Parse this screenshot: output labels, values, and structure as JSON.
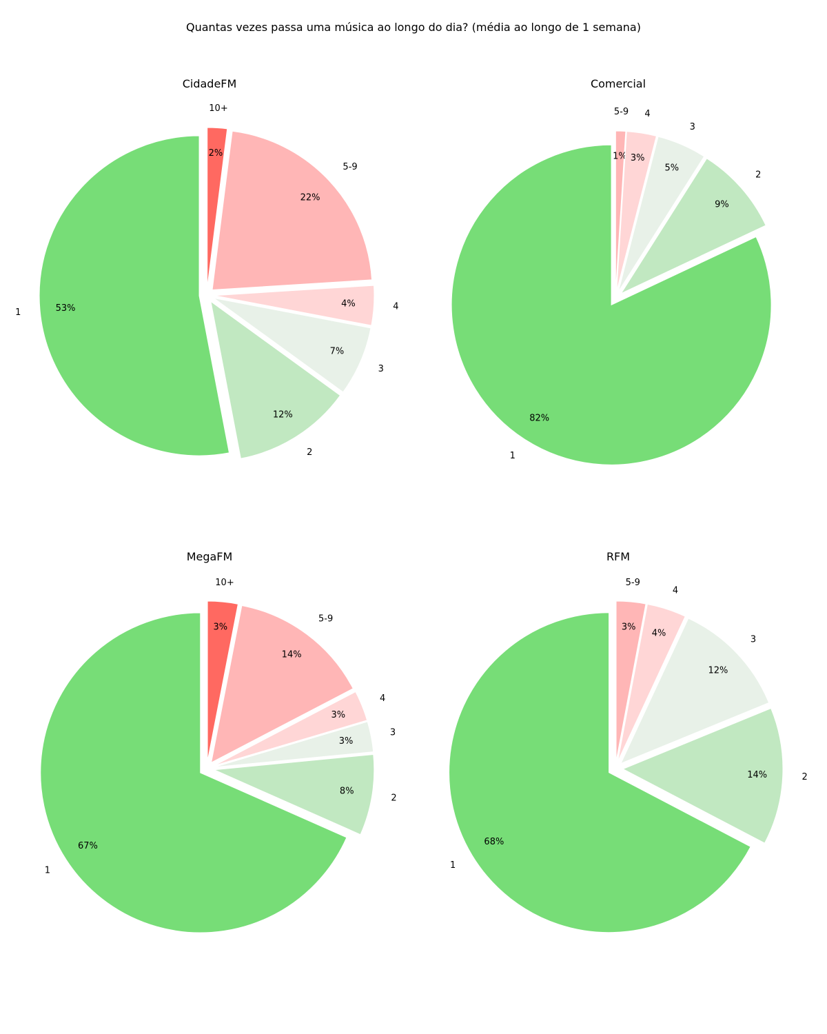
{
  "figure": {
    "suptitle": "Quantas vezes passa uma música ao longo do dia? (média ao longo de 1 semana)"
  },
  "colors": {
    "1": "#77dd77",
    "2": "#c1e8c1",
    "3": "#e8f1e8",
    "4": "#ffd6d6",
    "5-9": "#ffb6b6",
    "10+": "#ff6961"
  },
  "chart_data": [
    {
      "type": "pie",
      "title": "CidadeFM",
      "slices": [
        {
          "label": "10+",
          "value": 2,
          "pct_label": "2%",
          "color": "#ff6961"
        },
        {
          "label": "5-9",
          "value": 22,
          "pct_label": "22%",
          "color": "#ffb6b6"
        },
        {
          "label": "4",
          "value": 4,
          "pct_label": "4%",
          "color": "#ffd6d6"
        },
        {
          "label": "3",
          "value": 7,
          "pct_label": "7%",
          "color": "#e8f1e8"
        },
        {
          "label": "2",
          "value": 12,
          "pct_label": "12%",
          "color": "#c1e8c1"
        },
        {
          "label": "1",
          "value": 53,
          "pct_label": "53%",
          "color": "#77dd77"
        }
      ]
    },
    {
      "type": "pie",
      "title": "Comercial",
      "slices": [
        {
          "label": "5-9",
          "value": 1,
          "pct_label": "1%",
          "color": "#ffb6b6"
        },
        {
          "label": "4",
          "value": 3,
          "pct_label": "3%",
          "color": "#ffd6d6"
        },
        {
          "label": "3",
          "value": 5,
          "pct_label": "5%",
          "color": "#e8f1e8"
        },
        {
          "label": "2",
          "value": 9,
          "pct_label": "9%",
          "color": "#c1e8c1"
        },
        {
          "label": "1",
          "value": 82,
          "pct_label": "82%",
          "color": "#77dd77"
        }
      ]
    },
    {
      "type": "pie",
      "title": "MegaFM",
      "slices": [
        {
          "label": "10+",
          "value": 3,
          "pct_label": "3%",
          "color": "#ff6961"
        },
        {
          "label": "5-9",
          "value": 14,
          "pct_label": "14%",
          "color": "#ffb6b6"
        },
        {
          "label": "4",
          "value": 3,
          "pct_label": "3%",
          "color": "#ffd6d6"
        },
        {
          "label": "3",
          "value": 3,
          "pct_label": "3%",
          "color": "#e8f1e8"
        },
        {
          "label": "2",
          "value": 8,
          "pct_label": "8%",
          "color": "#c1e8c1"
        },
        {
          "label": "1",
          "value": 67,
          "pct_label": "67%",
          "color": "#77dd77"
        }
      ]
    },
    {
      "type": "pie",
      "title": "RFM",
      "slices": [
        {
          "label": "5-9",
          "value": 3,
          "pct_label": "3%",
          "color": "#ffb6b6"
        },
        {
          "label": "4",
          "value": 4,
          "pct_label": "4%",
          "color": "#ffd6d6"
        },
        {
          "label": "3",
          "value": 12,
          "pct_label": "12%",
          "color": "#e8f1e8"
        },
        {
          "label": "2",
          "value": 14,
          "pct_label": "14%",
          "color": "#c1e8c1"
        },
        {
          "label": "1",
          "value": 68,
          "pct_label": "68%",
          "color": "#77dd77"
        }
      ]
    }
  ]
}
